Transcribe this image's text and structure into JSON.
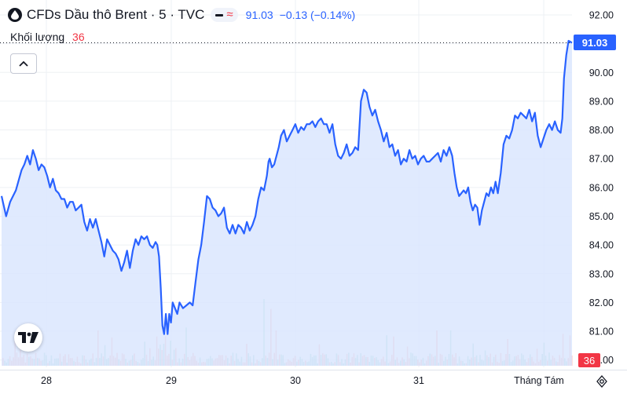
{
  "header": {
    "title": "CFDs Dầu thô Brent · 5 · TVC",
    "price": "91.03",
    "change": "−0.13 (−0.14%)"
  },
  "volume": {
    "label": "Khối lượng",
    "value": "36"
  },
  "tags": {
    "last_price": "91.03",
    "last_volume": "36"
  },
  "icons": {
    "symbol": "oil-drop-icon",
    "collapse": "chevron-up-icon",
    "logo": "tradingview-logo-icon",
    "settings": "gear-icon"
  },
  "colors": {
    "line": "#2962ff",
    "area": "#dbe6fe",
    "up_volume": "#26a69a",
    "down_volume": "#ef5350",
    "price_tag": "#2962ff",
    "volume_tag": "#f23645"
  },
  "chart_data": {
    "type": "area",
    "y_ticks": [
      "92.00",
      "91.00",
      "90.00",
      "89.00",
      "88.00",
      "87.00",
      "86.00",
      "85.00",
      "84.00",
      "83.00",
      "82.00",
      "81.00",
      "80.00"
    ],
    "x_ticks": [
      "28",
      "29",
      "30",
      "31",
      "Tháng Tám"
    ],
    "ylim": [
      79.8,
      92.3
    ],
    "xlim": [
      0,
      100
    ],
    "grid": true,
    "series": [
      {
        "points": [
          [
            0.0,
            85.7
          ],
          [
            0.8,
            85.0
          ],
          [
            1.5,
            85.5
          ],
          [
            2.5,
            85.9
          ],
          [
            3.5,
            86.6
          ],
          [
            4.0,
            86.8
          ],
          [
            4.5,
            87.1
          ],
          [
            5.0,
            86.8
          ],
          [
            5.5,
            87.3
          ],
          [
            6.0,
            87.0
          ],
          [
            6.5,
            86.6
          ],
          [
            7.0,
            86.8
          ],
          [
            7.5,
            86.7
          ],
          [
            8.0,
            86.4
          ],
          [
            8.5,
            86.0
          ],
          [
            9.0,
            86.3
          ],
          [
            9.5,
            85.9
          ],
          [
            10.0,
            85.8
          ],
          [
            10.5,
            85.6
          ],
          [
            11.0,
            85.6
          ],
          [
            11.5,
            85.3
          ],
          [
            12.0,
            85.5
          ],
          [
            12.5,
            85.5
          ],
          [
            13.0,
            85.2
          ],
          [
            13.5,
            85.3
          ],
          [
            14.0,
            85.4
          ],
          [
            14.5,
            84.8
          ],
          [
            15.0,
            84.5
          ],
          [
            15.5,
            84.9
          ],
          [
            16.0,
            84.6
          ],
          [
            16.5,
            84.9
          ],
          [
            17.0,
            84.5
          ],
          [
            17.5,
            84.1
          ],
          [
            18.0,
            83.6
          ],
          [
            18.5,
            84.2
          ],
          [
            19.0,
            84.0
          ],
          [
            19.5,
            83.8
          ],
          [
            20.0,
            83.7
          ],
          [
            20.5,
            83.5
          ],
          [
            21.0,
            83.1
          ],
          [
            21.5,
            83.4
          ],
          [
            22.0,
            83.8
          ],
          [
            22.5,
            83.2
          ],
          [
            23.0,
            83.8
          ],
          [
            23.5,
            84.2
          ],
          [
            24.0,
            84.0
          ],
          [
            24.5,
            84.3
          ],
          [
            25.0,
            84.2
          ],
          [
            25.5,
            84.3
          ],
          [
            26.0,
            84.0
          ],
          [
            26.5,
            83.9
          ],
          [
            27.0,
            84.1
          ],
          [
            27.3,
            84.0
          ],
          [
            27.6,
            83.6
          ],
          [
            27.9,
            82.5
          ],
          [
            28.2,
            81.2
          ],
          [
            28.5,
            80.9
          ],
          [
            28.8,
            81.6
          ],
          [
            29.1,
            80.9
          ],
          [
            29.4,
            81.6
          ],
          [
            29.7,
            81.3
          ],
          [
            30.0,
            82.0
          ],
          [
            30.4,
            81.8
          ],
          [
            30.8,
            81.6
          ],
          [
            31.2,
            82.0
          ],
          [
            31.8,
            81.8
          ],
          [
            32.4,
            81.9
          ],
          [
            33.0,
            82.0
          ],
          [
            33.5,
            81.9
          ],
          [
            34.0,
            82.7
          ],
          [
            34.5,
            83.5
          ],
          [
            35.0,
            84.0
          ],
          [
            35.5,
            84.8
          ],
          [
            36.0,
            85.7
          ],
          [
            36.5,
            85.6
          ],
          [
            37.0,
            85.3
          ],
          [
            37.5,
            85.2
          ],
          [
            38.0,
            85.0
          ],
          [
            38.5,
            85.1
          ],
          [
            39.0,
            85.3
          ],
          [
            39.5,
            84.6
          ],
          [
            40.0,
            84.4
          ],
          [
            40.5,
            84.7
          ],
          [
            41.0,
            84.4
          ],
          [
            41.5,
            84.7
          ],
          [
            42.0,
            84.6
          ],
          [
            42.5,
            84.4
          ],
          [
            43.0,
            84.8
          ],
          [
            43.5,
            84.5
          ],
          [
            44.0,
            84.7
          ],
          [
            44.5,
            85.0
          ],
          [
            45.0,
            85.6
          ],
          [
            45.5,
            86.0
          ],
          [
            46.0,
            85.9
          ],
          [
            46.5,
            86.4
          ],
          [
            46.8,
            86.9
          ],
          [
            47.0,
            87.0
          ],
          [
            47.4,
            86.7
          ],
          [
            47.8,
            86.8
          ],
          [
            48.2,
            87.1
          ],
          [
            48.6,
            87.4
          ],
          [
            49.0,
            87.8
          ],
          [
            49.5,
            88.0
          ],
          [
            50.0,
            87.6
          ],
          [
            50.5,
            87.8
          ],
          [
            51.0,
            88.0
          ],
          [
            51.5,
            88.2
          ],
          [
            52.0,
            87.9
          ],
          [
            52.5,
            88.1
          ],
          [
            53.0,
            88.0
          ],
          [
            53.5,
            88.2
          ],
          [
            54.0,
            88.2
          ],
          [
            54.5,
            88.3
          ],
          [
            55.0,
            88.1
          ],
          [
            55.5,
            88.3
          ],
          [
            56.0,
            88.4
          ],
          [
            56.5,
            88.2
          ],
          [
            57.0,
            88.2
          ],
          [
            57.5,
            87.9
          ],
          [
            58.0,
            88.2
          ],
          [
            58.5,
            87.5
          ],
          [
            59.0,
            87.1
          ],
          [
            59.5,
            87.0
          ],
          [
            60.0,
            87.2
          ],
          [
            60.5,
            87.5
          ],
          [
            61.0,
            87.1
          ],
          [
            61.5,
            87.2
          ],
          [
            62.0,
            87.4
          ],
          [
            62.5,
            87.3
          ],
          [
            63.0,
            89.0
          ],
          [
            63.5,
            89.4
          ],
          [
            64.0,
            89.3
          ],
          [
            64.5,
            88.8
          ],
          [
            65.0,
            88.5
          ],
          [
            65.5,
            88.7
          ],
          [
            66.0,
            88.3
          ],
          [
            66.5,
            88.0
          ],
          [
            67.0,
            87.6
          ],
          [
            67.5,
            87.9
          ],
          [
            68.0,
            87.4
          ],
          [
            68.5,
            87.5
          ],
          [
            69.0,
            87.1
          ],
          [
            69.5,
            87.3
          ],
          [
            70.0,
            86.8
          ],
          [
            70.5,
            87.0
          ],
          [
            71.0,
            86.9
          ],
          [
            71.5,
            87.3
          ],
          [
            72.0,
            87.0
          ],
          [
            72.5,
            87.1
          ],
          [
            73.0,
            86.8
          ],
          [
            73.5,
            87.0
          ],
          [
            74.0,
            87.1
          ],
          [
            74.5,
            86.9
          ],
          [
            75.0,
            86.9
          ],
          [
            75.5,
            87.0
          ],
          [
            76.0,
            87.1
          ],
          [
            76.5,
            87.2
          ],
          [
            77.0,
            86.9
          ],
          [
            77.5,
            87.3
          ],
          [
            78.0,
            87.1
          ],
          [
            78.5,
            87.4
          ],
          [
            79.0,
            87.1
          ],
          [
            79.4,
            86.5
          ],
          [
            79.8,
            86.0
          ],
          [
            80.2,
            85.7
          ],
          [
            80.6,
            85.8
          ],
          [
            81.0,
            85.9
          ],
          [
            81.4,
            85.8
          ],
          [
            81.8,
            86.0
          ],
          [
            82.2,
            85.5
          ],
          [
            82.6,
            85.2
          ],
          [
            83.0,
            85.4
          ],
          [
            83.4,
            85.3
          ],
          [
            83.8,
            84.7
          ],
          [
            84.2,
            85.2
          ],
          [
            84.6,
            85.5
          ],
          [
            85.0,
            85.8
          ],
          [
            85.4,
            85.7
          ],
          [
            85.8,
            86.0
          ],
          [
            86.2,
            85.8
          ],
          [
            86.6,
            86.2
          ],
          [
            87.0,
            85.8
          ],
          [
            87.5,
            86.5
          ],
          [
            88.0,
            87.5
          ],
          [
            88.5,
            87.8
          ],
          [
            89.0,
            87.7
          ],
          [
            89.5,
            88.0
          ],
          [
            90.0,
            88.5
          ],
          [
            90.5,
            88.4
          ],
          [
            91.0,
            88.6
          ],
          [
            91.5,
            88.5
          ],
          [
            92.0,
            88.4
          ],
          [
            92.5,
            88.7
          ],
          [
            93.0,
            88.3
          ],
          [
            93.5,
            88.6
          ],
          [
            94.0,
            87.8
          ],
          [
            94.5,
            87.4
          ],
          [
            95.0,
            87.7
          ],
          [
            95.5,
            88.0
          ],
          [
            96.0,
            88.2
          ],
          [
            96.5,
            88.0
          ],
          [
            97.0,
            88.3
          ],
          [
            97.5,
            88.0
          ],
          [
            98.0,
            87.9
          ],
          [
            98.3,
            88.4
          ],
          [
            98.6,
            89.8
          ],
          [
            99.0,
            90.6
          ],
          [
            99.4,
            91.1
          ],
          [
            100.0,
            91.03
          ]
        ]
      }
    ]
  }
}
